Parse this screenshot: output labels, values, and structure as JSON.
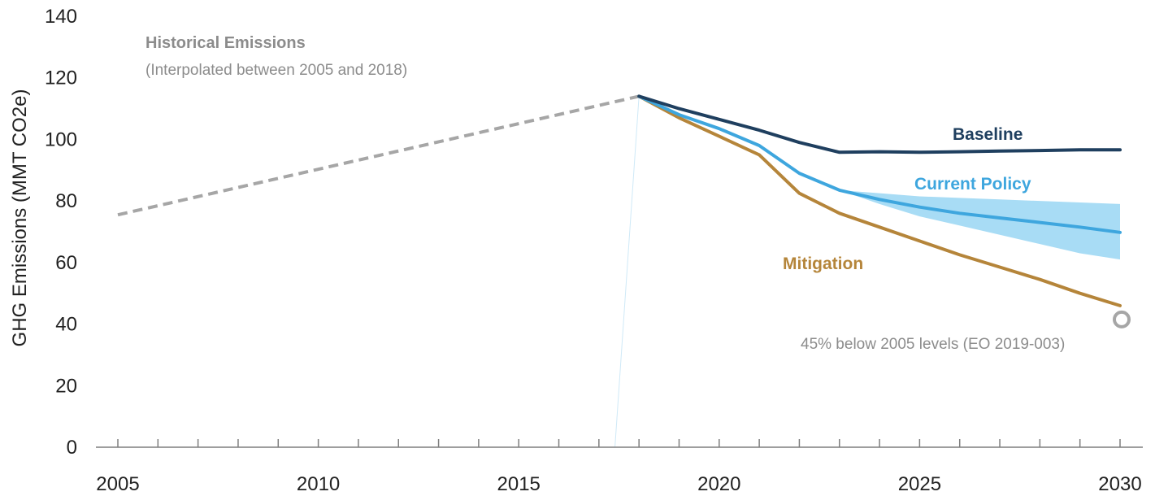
{
  "chart_data": {
    "type": "line",
    "ylabel": "GHG Emissions (MMT CO2e)",
    "xlabel": "",
    "xlim": [
      2004.5,
      2030.3
    ],
    "ylim": [
      0,
      140
    ],
    "x_ticks": [
      2005,
      2010,
      2015,
      2020,
      2025,
      2030
    ],
    "y_ticks": [
      0,
      20,
      40,
      60,
      80,
      100,
      120,
      140
    ],
    "grid": false,
    "legend": "inline labels",
    "colors": {
      "historical": "#a6a6a6",
      "baseline": "#1f3f5f",
      "current_policy": "#3ea6de",
      "current_policy_band": "#a8dcf5",
      "mitigation": "#b5853a",
      "target": "#a6a6a6"
    },
    "annotation_title": "Historical Emissions",
    "annotation_subtitle": "(Interpolated between 2005 and 2018)",
    "series": [
      {
        "name": "Historical Emissions",
        "style": "dashed",
        "x": [
          2005,
          2018
        ],
        "values": [
          75.5,
          114
        ]
      },
      {
        "name": "Baseline",
        "x": [
          2018,
          2019,
          2020,
          2021,
          2022,
          2023,
          2024,
          2025,
          2026,
          2027,
          2028,
          2029,
          2030
        ],
        "values": [
          114,
          110,
          106.5,
          103,
          99,
          95.8,
          96,
          95.8,
          96,
          96.2,
          96.4,
          96.6,
          96.6
        ]
      },
      {
        "name": "Current Policy",
        "x": [
          2018,
          2019,
          2020,
          2021,
          2022,
          2023,
          2024,
          2025,
          2026,
          2027,
          2028,
          2029,
          2030
        ],
        "values": [
          114,
          108,
          103.5,
          98,
          89,
          83.5,
          80.5,
          78,
          76,
          74.5,
          73,
          71.5,
          69.8
        ]
      },
      {
        "name": "Mitigation",
        "x": [
          2018,
          2019,
          2020,
          2021,
          2022,
          2023,
          2024,
          2025,
          2026,
          2027,
          2028,
          2029,
          2030
        ],
        "values": [
          114,
          107,
          101,
          95,
          82.5,
          76,
          71.5,
          67,
          62.5,
          58.5,
          54.5,
          50,
          46
        ]
      }
    ],
    "band": {
      "series": "Current Policy",
      "x": [
        2023,
        2024,
        2025,
        2026,
        2027,
        2028,
        2029,
        2030
      ],
      "lower": [
        83.5,
        79,
        75,
        72,
        69,
        66,
        63,
        61
      ],
      "upper": [
        83.5,
        82.5,
        81.5,
        81,
        80.5,
        80,
        79.5,
        79
      ]
    },
    "target": {
      "x": 2030,
      "value": 41.5,
      "label": "45% below 2005 levels (EO 2019-003)"
    }
  }
}
